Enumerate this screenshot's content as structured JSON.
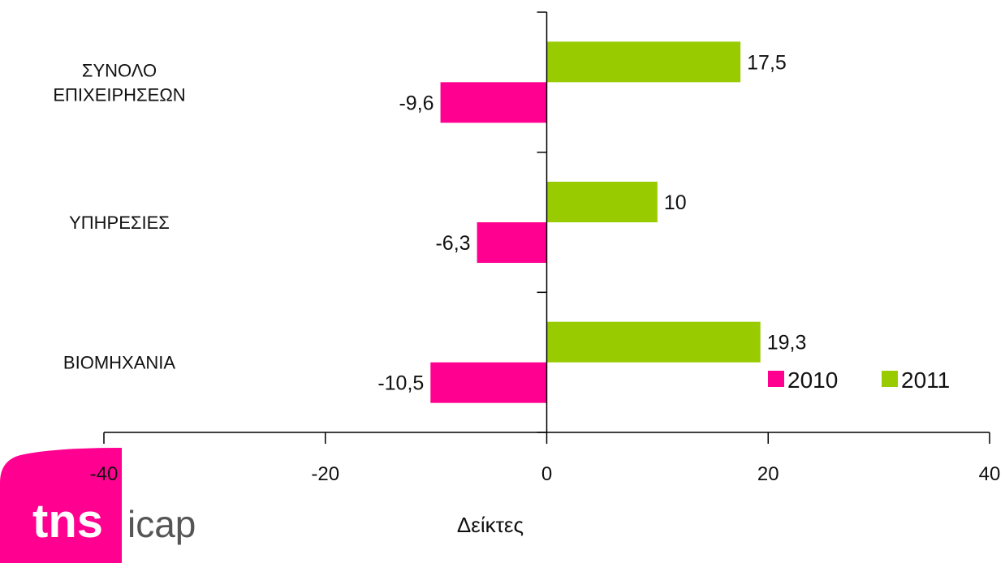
{
  "chart_data": {
    "type": "bar",
    "orientation": "horizontal",
    "categories": [
      "ΣΥΝΟΛΟ\nΕΠΙΧΕΙΡΗΣΕΩΝ",
      "ΥΠΗΡΕΣΙΕΣ",
      "ΒΙΟΜΗΧΑΝΙΑ"
    ],
    "series": [
      {
        "name": "2010",
        "values": [
          -9.6,
          -6.3,
          -10.5
        ],
        "labels": [
          "-9,6",
          "-6,3",
          "-10,5"
        ],
        "color": "#ff0090"
      },
      {
        "name": "2011",
        "values": [
          17.5,
          10,
          19.3
        ],
        "labels": [
          "17,5",
          "10",
          "19,3"
        ],
        "color": "#99cc00"
      }
    ],
    "xlabel": "Δείκτες",
    "xlim": [
      -40,
      40
    ],
    "xticks": [
      "-40",
      "-20",
      "0",
      "20",
      "40"
    ],
    "grid": false,
    "legend_position": "bottom-right"
  },
  "logo": {
    "tns": "tns",
    "icap": "icap",
    "color": "#ff0090"
  }
}
